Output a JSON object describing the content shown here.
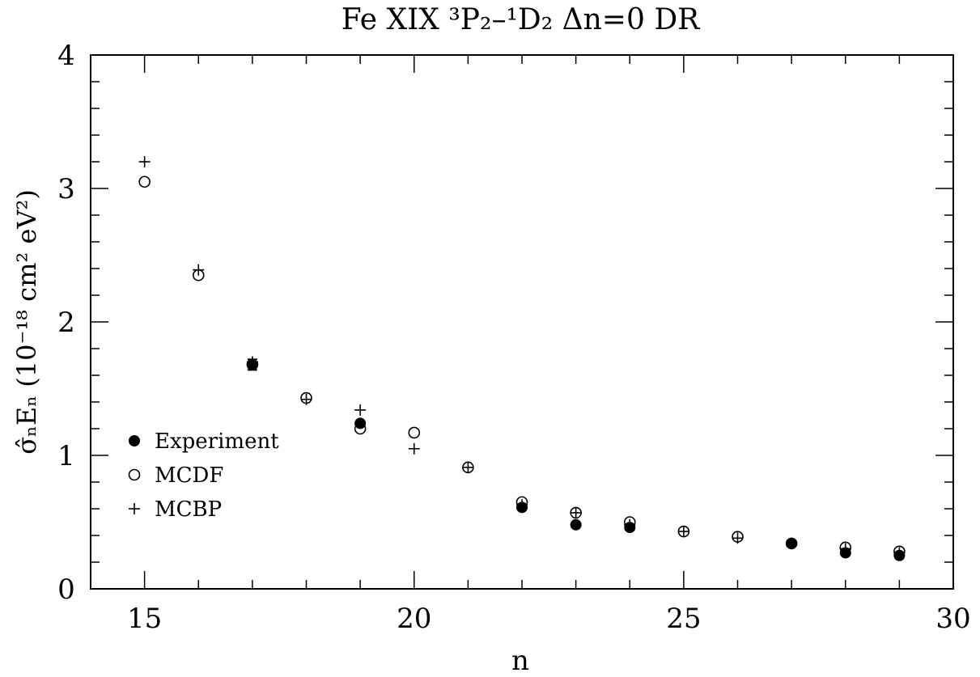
{
  "chart_data": {
    "type": "scatter",
    "title": "Fe XIX ³P₂–¹D₂ Δn=0 DR",
    "xlabel": "n",
    "ylabel": "σ̂ₙEₙ (10⁻¹⁸ cm² eV²)",
    "xlim": [
      14,
      30
    ],
    "ylim": [
      0,
      4
    ],
    "xticks": [
      15,
      20,
      25,
      30
    ],
    "yticks": [
      0,
      1,
      2,
      3,
      4
    ],
    "grid": false,
    "legend_position": "left",
    "series": [
      {
        "name": "Experiment",
        "marker": "filled-circle",
        "points": [
          {
            "x": 17,
            "y": 1.68,
            "err": 0.04
          },
          {
            "x": 19,
            "y": 1.24
          },
          {
            "x": 22,
            "y": 0.61
          },
          {
            "x": 23,
            "y": 0.48
          },
          {
            "x": 24,
            "y": 0.46
          },
          {
            "x": 27,
            "y": 0.34
          },
          {
            "x": 28,
            "y": 0.27
          },
          {
            "x": 29,
            "y": 0.25
          }
        ]
      },
      {
        "name": "MCDF",
        "marker": "open-circle",
        "points": [
          {
            "x": 15,
            "y": 3.05
          },
          {
            "x": 16,
            "y": 2.35
          },
          {
            "x": 17,
            "y": 1.68
          },
          {
            "x": 18,
            "y": 1.43
          },
          {
            "x": 19,
            "y": 1.2
          },
          {
            "x": 20,
            "y": 1.17
          },
          {
            "x": 21,
            "y": 0.91
          },
          {
            "x": 22,
            "y": 0.65
          },
          {
            "x": 23,
            "y": 0.57
          },
          {
            "x": 24,
            "y": 0.5
          },
          {
            "x": 25,
            "y": 0.43
          },
          {
            "x": 26,
            "y": 0.39
          },
          {
            "x": 27,
            "y": 0.34
          },
          {
            "x": 28,
            "y": 0.31
          },
          {
            "x": 29,
            "y": 0.28
          }
        ]
      },
      {
        "name": "MCBP",
        "marker": "plus",
        "points": [
          {
            "x": 15,
            "y": 3.2
          },
          {
            "x": 16,
            "y": 2.39
          },
          {
            "x": 17,
            "y": 1.7
          },
          {
            "x": 18,
            "y": 1.42
          },
          {
            "x": 19,
            "y": 1.34
          },
          {
            "x": 20,
            "y": 1.05
          },
          {
            "x": 21,
            "y": 0.91
          },
          {
            "x": 22,
            "y": 0.63
          },
          {
            "x": 23,
            "y": 0.57
          },
          {
            "x": 24,
            "y": 0.48
          },
          {
            "x": 25,
            "y": 0.43
          },
          {
            "x": 26,
            "y": 0.38
          },
          {
            "x": 27,
            "y": 0.34
          },
          {
            "x": 28,
            "y": 0.3
          },
          {
            "x": 29,
            "y": 0.27
          }
        ]
      }
    ]
  }
}
